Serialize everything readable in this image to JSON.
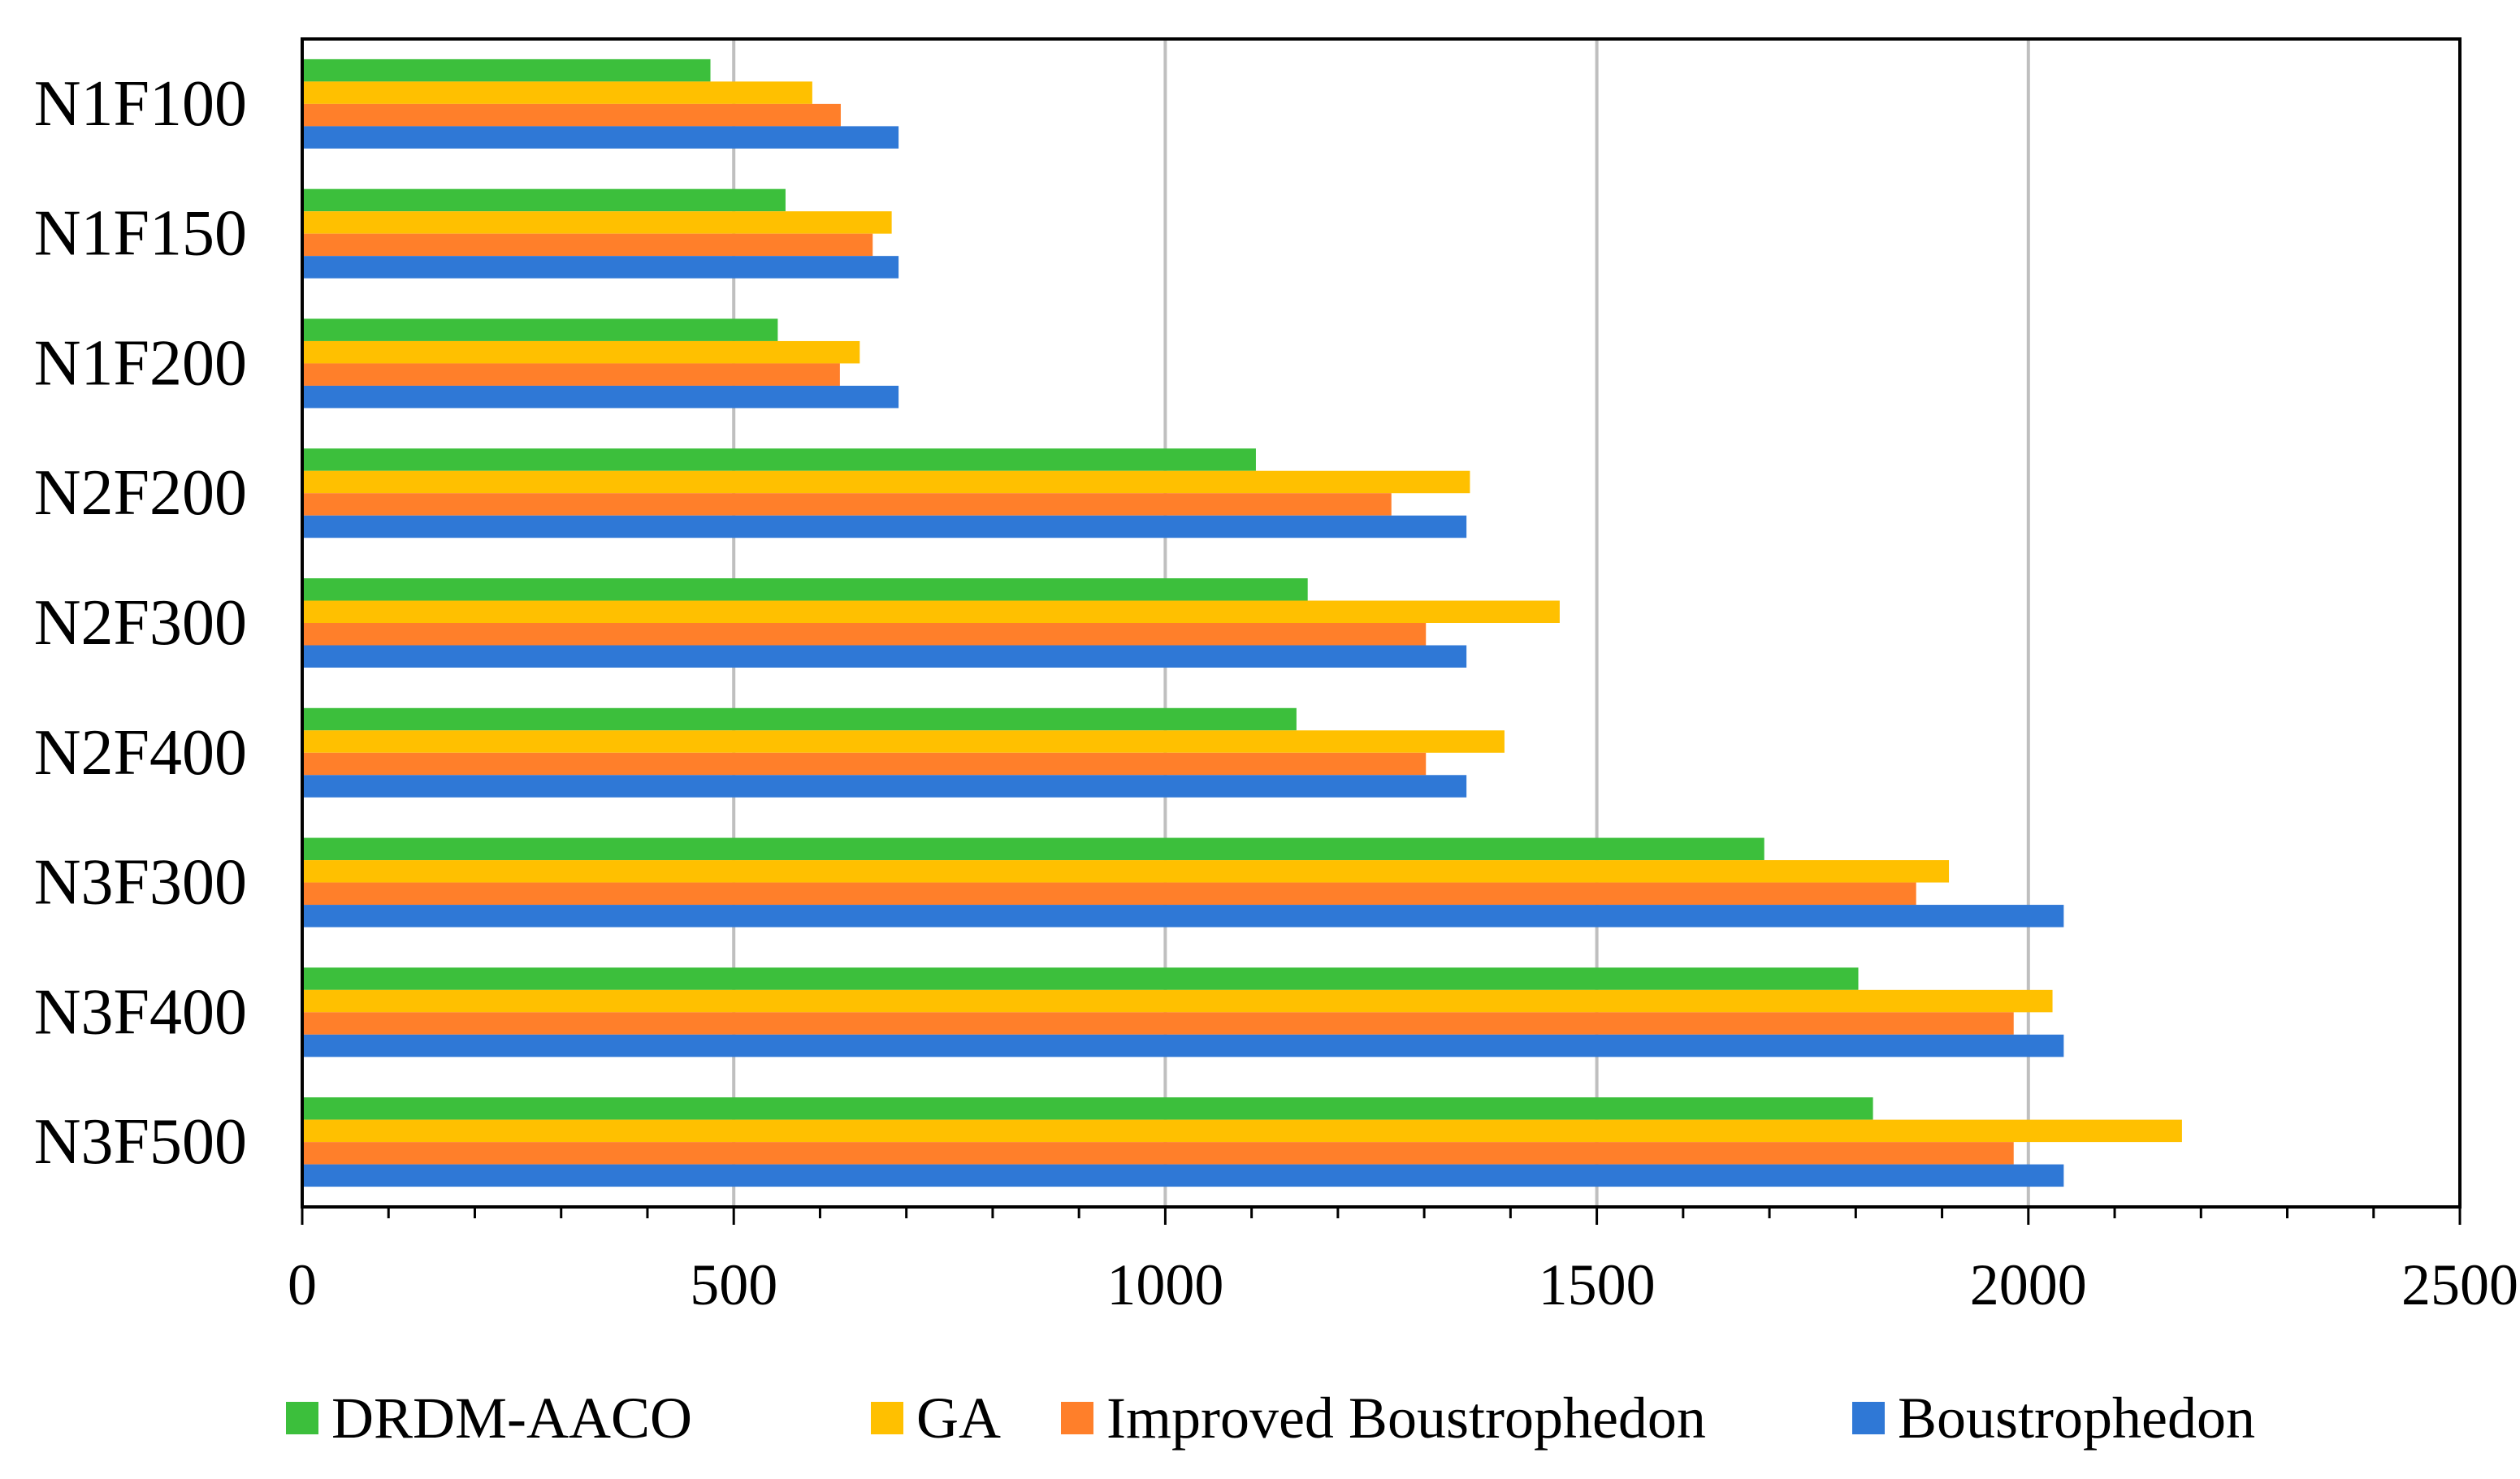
{
  "chart_data": {
    "type": "bar",
    "orientation": "horizontal",
    "title": "",
    "xlabel": "",
    "ylabel": "",
    "xlim": [
      0,
      2500
    ],
    "x_ticks": [
      0,
      500,
      1000,
      1500,
      2000,
      2500
    ],
    "x_tick_labels": [
      "0",
      "500",
      "1000",
      "1500",
      "2000",
      "2500"
    ],
    "grid": "vertical major gridlines",
    "legend_position": "bottom",
    "categories": [
      "N1F100",
      "N1F150",
      "N1F200",
      "N2F200",
      "N2F300",
      "N2F400",
      "N3F300",
      "N3F400",
      "N3F500"
    ],
    "series": [
      {
        "name": "DRDM-AACO",
        "color": "#3CBF3C",
        "values": [
          473,
          560,
          551,
          1105,
          1165,
          1152,
          1694,
          1803,
          1820
        ]
      },
      {
        "name": "GA",
        "color": "#FFC000",
        "values": [
          591,
          683,
          646,
          1353,
          1457,
          1393,
          1908,
          2028,
          2178
        ]
      },
      {
        "name": "Improved Boustrophedon",
        "color": "#FF7F2A",
        "values": [
          624,
          661,
          623,
          1262,
          1302,
          1302,
          1870,
          1983,
          1983
        ]
      },
      {
        "name": "Boustrophedon",
        "color": "#2F78D6",
        "values": [
          691,
          691,
          691,
          1349,
          1349,
          1349,
          2041,
          2041,
          2041
        ]
      }
    ]
  }
}
